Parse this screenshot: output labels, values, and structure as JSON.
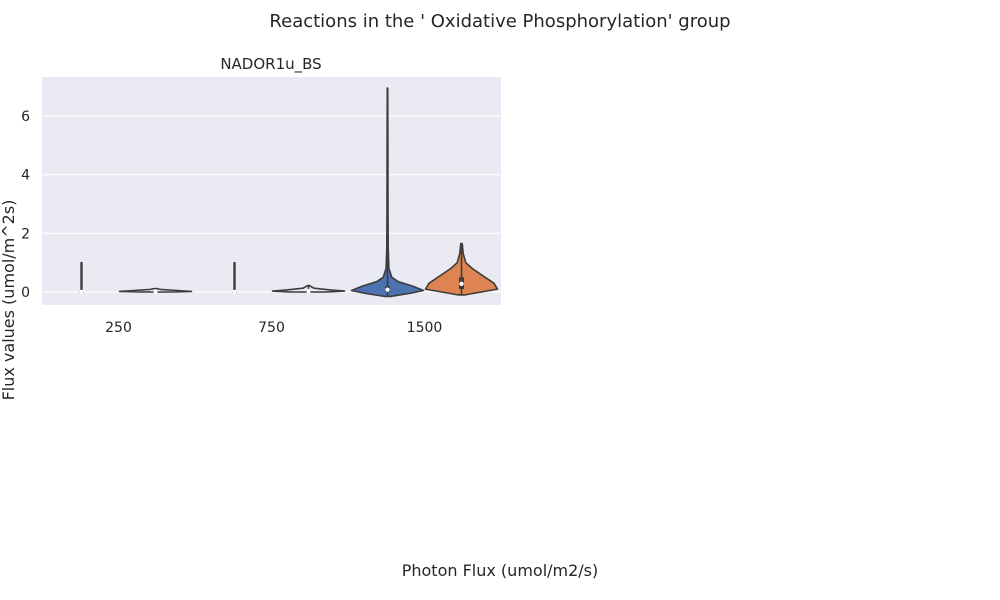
{
  "suptitle": "Reactions in the ' Oxidative Phosphorylation' group",
  "chart_data": {
    "type": "violin",
    "title": "NADOR1u_BS",
    "xlabel": "Photon Flux (umol/m2/s)",
    "ylabel": "Flux values (umol/m^2s)",
    "categories": [
      "250",
      "750",
      "1500"
    ],
    "ylim": [
      -0.4,
      7.3
    ],
    "yticks": [
      0,
      2,
      4,
      6
    ],
    "grid": true,
    "hue_colors": [
      "#4c72b0",
      "#dd8452"
    ],
    "violins": [
      {
        "category": "250",
        "hue": 0,
        "color": "#eaeaf2",
        "min": 0.0,
        "max": 0.0,
        "median": 0.0,
        "q1": 0.0,
        "q3": 0.0,
        "shape": [
          [
            0,
            0.01
          ],
          [
            1,
            0.01
          ]
        ]
      },
      {
        "category": "250",
        "hue": 1,
        "color": "#eaeaf2",
        "min": 0.0,
        "max": 0.12,
        "median": 0.02,
        "q1": 0.0,
        "q3": 0.05,
        "shape": [
          [
            0,
            0.4
          ],
          [
            0.02,
            1
          ],
          [
            0.05,
            0.6
          ],
          [
            0.09,
            0.15
          ],
          [
            0.12,
            0.02
          ]
        ]
      },
      {
        "category": "750",
        "hue": 0,
        "color": "#eaeaf2",
        "min": 0.0,
        "max": 0.0,
        "median": 0.0,
        "q1": 0.0,
        "q3": 0.0,
        "shape": [
          [
            0,
            0.01
          ],
          [
            1,
            0.01
          ]
        ]
      },
      {
        "category": "750",
        "hue": 1,
        "color": "#eaeaf2",
        "min": 0.0,
        "max": 0.22,
        "median": 0.03,
        "q1": 0.0,
        "q3": 0.06,
        "shape": [
          [
            0,
            0.5
          ],
          [
            0.03,
            1
          ],
          [
            0.07,
            0.6
          ],
          [
            0.13,
            0.15
          ],
          [
            0.22,
            0.02
          ]
        ]
      },
      {
        "category": "1500",
        "hue": 0,
        "color": "#4c72b0",
        "min": -0.15,
        "max": 6.95,
        "median": 0.08,
        "q1": 0.0,
        "q3": 0.2,
        "shape": [
          [
            -0.15,
            0.08
          ],
          [
            -0.05,
            0.6
          ],
          [
            0.05,
            1
          ],
          [
            0.2,
            0.7
          ],
          [
            0.35,
            0.3
          ],
          [
            0.5,
            0.12
          ],
          [
            0.8,
            0.04
          ],
          [
            1.5,
            0.02
          ],
          [
            3,
            0.015
          ],
          [
            5,
            0.01
          ],
          [
            6.95,
            0.005
          ]
        ]
      },
      {
        "category": "1500",
        "hue": 1,
        "color": "#dd8452",
        "min": -0.1,
        "max": 1.65,
        "median": 0.28,
        "q1": 0.1,
        "q3": 0.5,
        "shape": [
          [
            -0.1,
            0.1
          ],
          [
            0,
            0.55
          ],
          [
            0.1,
            1
          ],
          [
            0.3,
            0.9
          ],
          [
            0.55,
            0.6
          ],
          [
            0.8,
            0.3
          ],
          [
            1.0,
            0.12
          ],
          [
            1.3,
            0.05
          ],
          [
            1.65,
            0.02
          ]
        ]
      }
    ]
  }
}
